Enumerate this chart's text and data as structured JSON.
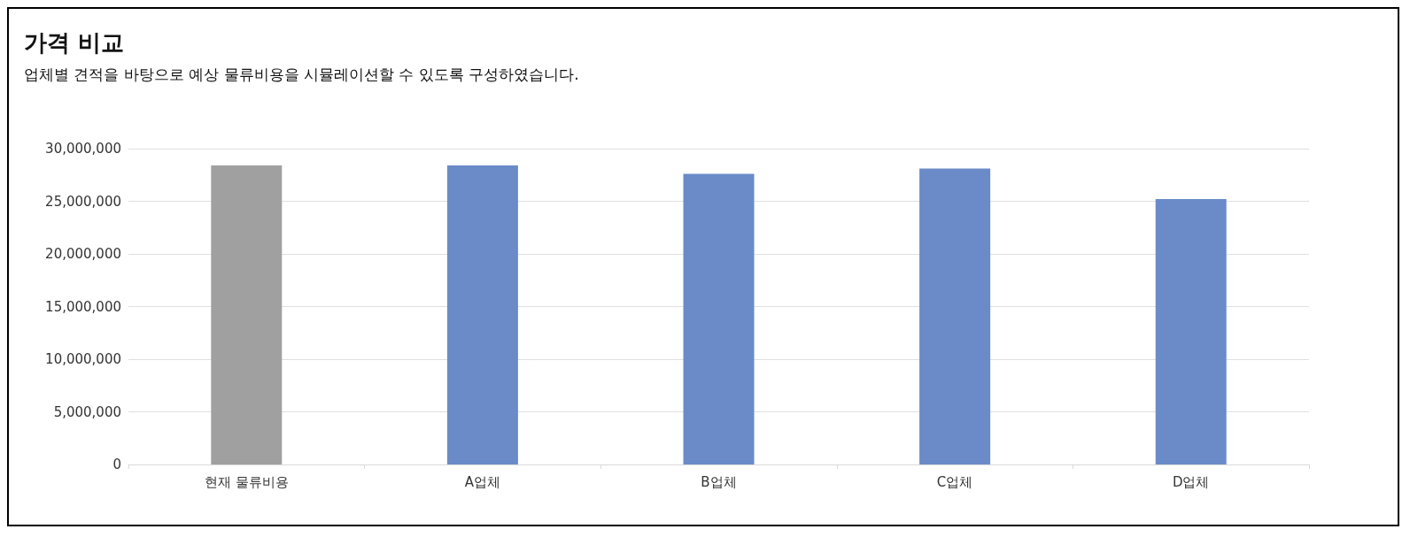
{
  "chart_data": {
    "type": "bar",
    "title": "가격 비교",
    "subtitle": "업체별 견적을 바탕으로 예상 물류비용을 시뮬레이션할 수 있도록 구성하였습니다.",
    "categories": [
      "현재 물류비용",
      "A업체",
      "B업체",
      "C업체",
      "D업체"
    ],
    "values": [
      28400000,
      28400000,
      27600000,
      28100000,
      25200000
    ],
    "colors": [
      "#a0a0a0",
      "#6a8bc8",
      "#6a8bc8",
      "#6a8bc8",
      "#6a8bc8"
    ],
    "ylim": [
      0,
      30000000
    ],
    "yticks": [
      0,
      {
        "value": 5000000,
        "label": "5,000,000"
      },
      {
        "value": 10000000,
        "label": "10,000,000"
      },
      {
        "value": 15000000,
        "label": "15,000,000"
      },
      {
        "value": 20000000,
        "label": "20,000,000"
      },
      {
        "value": 25000000,
        "label": "25,000,000"
      },
      {
        "value": 30000000,
        "label": "30,000,000"
      }
    ],
    "grid": "y"
  }
}
